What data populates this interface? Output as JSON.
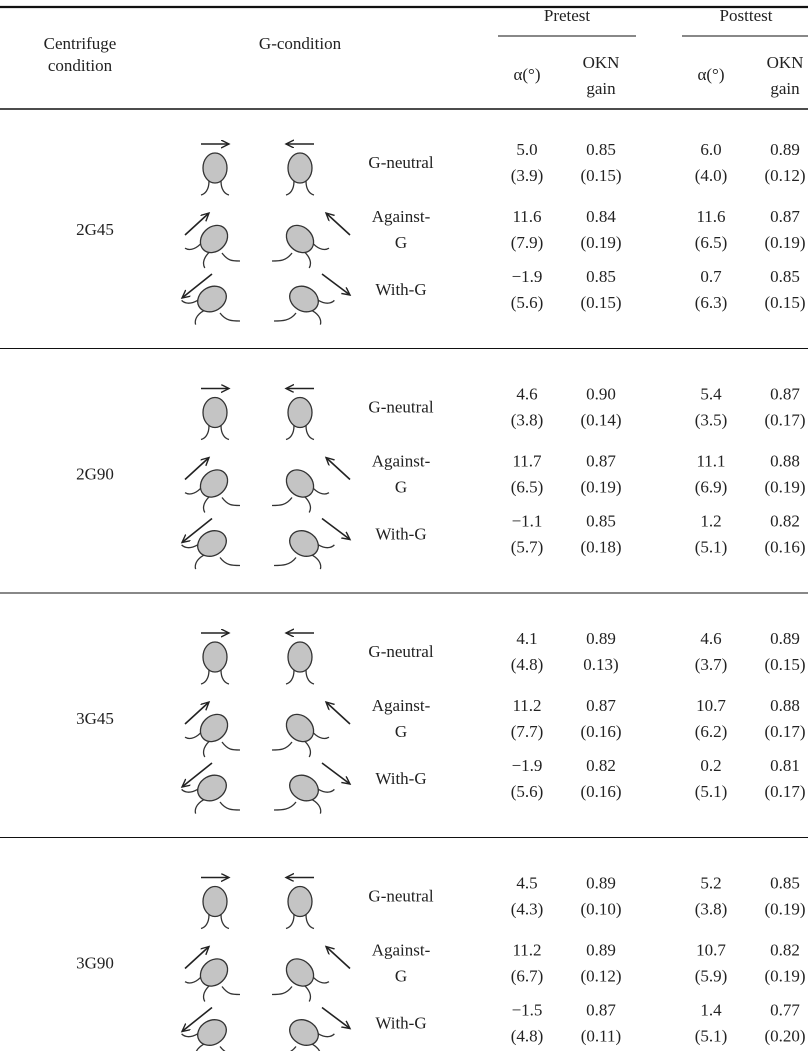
{
  "header": {
    "centrifuge_condition": [
      "Centrifuge",
      "condition"
    ],
    "g_condition": "G-condition",
    "pretest": "Pretest",
    "posttest": "Posttest",
    "subheaders": [
      {
        "alpha": "α(°)",
        "okn": [
          "OKN",
          "gain"
        ]
      },
      {
        "alpha": "α(°)",
        "okn": [
          "OKN",
          "gain"
        ]
      }
    ]
  },
  "groups": [
    {
      "condition": "2G45",
      "rows": [
        {
          "g": [
            "G-neutral"
          ],
          "cells": [
            [
              "5.0",
              "(3.9)"
            ],
            [
              "0.85",
              "(0.15)"
            ],
            [
              "6.0",
              "(4.0)"
            ],
            [
              "0.89",
              "(0.12)"
            ]
          ]
        },
        {
          "g": [
            "Against-",
            "G"
          ],
          "cells": [
            [
              "11.6",
              "(7.9)"
            ],
            [
              "0.84",
              "(0.19)"
            ],
            [
              "11.6",
              "(6.5)"
            ],
            [
              "0.87",
              "(0.19)"
            ]
          ]
        },
        {
          "g": [
            "With-G"
          ],
          "cells": [
            [
              "−1.9",
              "(5.6)"
            ],
            [
              "0.85",
              "(0.15)"
            ],
            [
              "0.7",
              "(6.3)"
            ],
            [
              "0.85",
              "(0.15)"
            ]
          ]
        }
      ]
    },
    {
      "condition": "2G90",
      "rows": [
        {
          "g": [
            "G-neutral"
          ],
          "cells": [
            [
              "4.6",
              "(3.8)"
            ],
            [
              "0.90",
              "(0.14)"
            ],
            [
              "5.4",
              "(3.5)"
            ],
            [
              "0.87",
              "(0.17)"
            ]
          ]
        },
        {
          "g": [
            "Against-",
            "G"
          ],
          "cells": [
            [
              "11.7",
              "(6.5)"
            ],
            [
              "0.87",
              "(0.19)"
            ],
            [
              "11.1",
              "(6.9)"
            ],
            [
              "0.88",
              "(0.19)"
            ]
          ]
        },
        {
          "g": [
            "With-G"
          ],
          "cells": [
            [
              "−1.1",
              "(5.7)"
            ],
            [
              "0.85",
              "(0.18)"
            ],
            [
              "1.2",
              "(5.1)"
            ],
            [
              "0.82",
              "(0.16)"
            ]
          ]
        }
      ]
    },
    {
      "condition": "3G45",
      "rows": [
        {
          "g": [
            "G-neutral"
          ],
          "cells": [
            [
              "4.1",
              "(4.8)"
            ],
            [
              "0.89",
              "0.13)"
            ],
            [
              "4.6",
              "(3.7)"
            ],
            [
              "0.89",
              "(0.15)"
            ]
          ]
        },
        {
          "g": [
            "Against-",
            "G"
          ],
          "cells": [
            [
              "11.2",
              "(7.7)"
            ],
            [
              "0.87",
              "(0.16)"
            ],
            [
              "10.7",
              "(6.2)"
            ],
            [
              "0.88",
              "(0.17)"
            ]
          ]
        },
        {
          "g": [
            "With-G"
          ],
          "cells": [
            [
              "−1.9",
              "(5.6)"
            ],
            [
              "0.82",
              "(0.16)"
            ],
            [
              "0.2",
              "(5.1)"
            ],
            [
              "0.81",
              "(0.17)"
            ]
          ]
        }
      ]
    },
    {
      "condition": "3G90",
      "rows": [
        {
          "g": [
            "G-neutral"
          ],
          "cells": [
            [
              "4.5",
              "(4.3)"
            ],
            [
              "0.89",
              "(0.10)"
            ],
            [
              "5.2",
              "(3.8)"
            ],
            [
              "0.85",
              "(0.19)"
            ]
          ]
        },
        {
          "g": [
            "Against-",
            "G"
          ],
          "cells": [
            [
              "11.2",
              "(6.7)"
            ],
            [
              "0.89",
              "(0.12)"
            ],
            [
              "10.7",
              "(5.9)"
            ],
            [
              "0.82",
              "(0.19)"
            ]
          ]
        },
        {
          "g": [
            "With-G"
          ],
          "cells": [
            [
              "−1.5",
              "(4.8)"
            ],
            [
              "0.87",
              "(0.11)"
            ],
            [
              "1.4",
              "(5.1)"
            ],
            [
              "0.77",
              "(0.20)"
            ]
          ]
        }
      ]
    }
  ]
}
